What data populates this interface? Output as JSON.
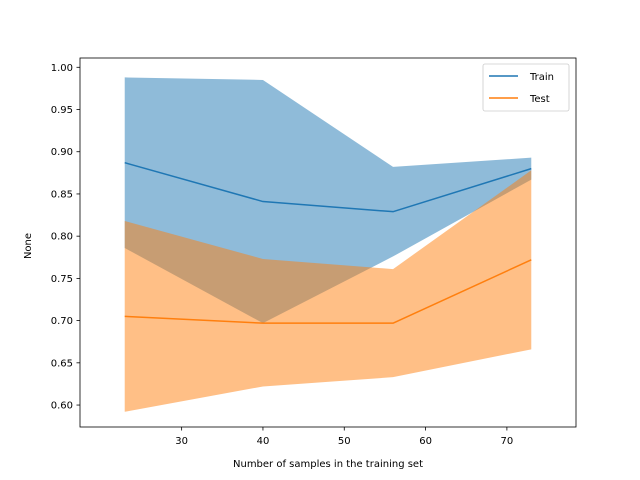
{
  "chart_data": {
    "type": "line",
    "xlabel": "Number of samples in the training set",
    "ylabel": "None",
    "xlim": [
      17.5,
      78.5
    ],
    "ylim": [
      0.574,
      1.011
    ],
    "xticks": [
      30,
      40,
      50,
      60,
      70
    ],
    "xtick_labels": [
      "30",
      "40",
      "50",
      "60",
      "70"
    ],
    "yticks": [
      0.6,
      0.65,
      0.7,
      0.75,
      0.8,
      0.85,
      0.9,
      0.95,
      1.0
    ],
    "ytick_labels": [
      "0.60",
      "0.65",
      "0.70",
      "0.75",
      "0.80",
      "0.85",
      "0.90",
      "0.95",
      "1.00"
    ],
    "grid": false,
    "legend_position": "top-right",
    "x": [
      23,
      40,
      56,
      73
    ],
    "series": [
      {
        "name": "Train",
        "color": "#1f77b4",
        "values": [
          0.887,
          0.841,
          0.829,
          0.88
        ],
        "band_lower": [
          0.786,
          0.697,
          0.776,
          0.867
        ],
        "band_upper": [
          0.988,
          0.985,
          0.882,
          0.893
        ]
      },
      {
        "name": "Test",
        "color": "#ff7f0e",
        "values": [
          0.705,
          0.697,
          0.697,
          0.772
        ],
        "band_lower": [
          0.592,
          0.622,
          0.633,
          0.666
        ],
        "band_upper": [
          0.818,
          0.773,
          0.761,
          0.878
        ]
      }
    ]
  }
}
